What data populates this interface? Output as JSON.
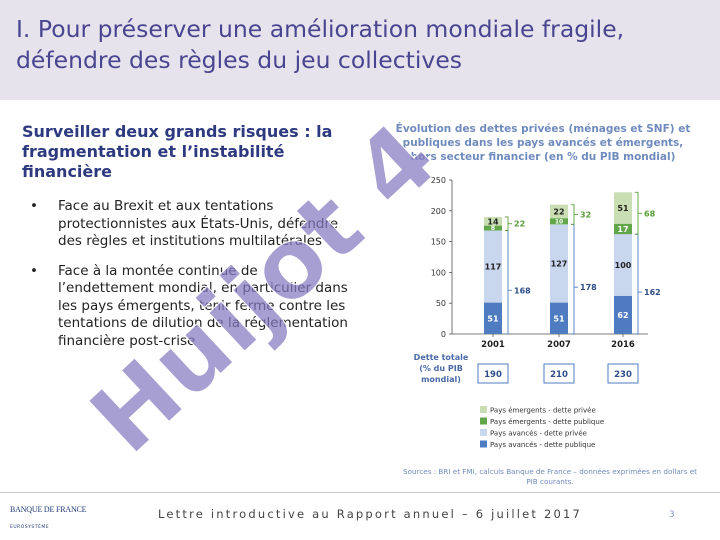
{
  "title": "I. Pour préserver une amélioration mondiale fragile, défendre des règles du jeu collectives",
  "subtitle": "Surveiller deux grands risques : la fragmentation et l’instabilité financière",
  "bullets": [
    "Face au Brexit et aux tentations protectionnistes aux États-Unis, défendre des règles et institutions multilatérales",
    "Face à la montée continue de l’endettement mondial, en particulier dans les pays émergents, tenir ferme contre les tentations de dilution de la réglementation financière post-crise"
  ],
  "bullet_glyph": "•",
  "watermark": "Huijot 4",
  "chart_title": "Évolution des dettes privées (ménages et SNF) et publiques dans les pays avancés et émergents, hors secteur financier (en % du PIB mondial)",
  "chart_data": {
    "type": "bar",
    "stacked": true,
    "categories": [
      "2001",
      "2007",
      "2016"
    ],
    "ylim": [
      0,
      250
    ],
    "yticks": [
      "0",
      "50",
      "100",
      "150",
      "200",
      "250"
    ],
    "series": [
      {
        "name": "Pays avancés - dette publique",
        "values": [
          51,
          51,
          62
        ],
        "color": "#4f7cc0",
        "labels": [
          "51",
          "51",
          "62"
        ]
      },
      {
        "name": "Pays avancés - dette privée",
        "values": [
          117,
          127,
          100
        ],
        "color": "#c8d6ee",
        "labels": [
          "117",
          "127",
          "100"
        ]
      },
      {
        "name": "Pays émergents - dette publique",
        "values": [
          8,
          10,
          17
        ],
        "color": "#62a64a",
        "labels": [
          "8",
          "10",
          "17"
        ]
      },
      {
        "name": "Pays émergents - dette privée",
        "values": [
          14,
          22,
          51
        ],
        "color": "#c9deb3",
        "labels": [
          "14",
          "22",
          "51"
        ]
      }
    ],
    "advanced_totals": [
      "168",
      "178",
      "162"
    ],
    "emerging_totals": [
      "22",
      "32",
      "68"
    ],
    "total_label": "Dette totale (% du PIB mondial)",
    "totals": [
      "190",
      "210",
      "230"
    ],
    "legend_order": [
      3,
      2,
      1,
      0
    ],
    "grid": false
  },
  "sources": "Sources : BRI et FMI, calculs Banque de France – données exprimées en dollars et PIB courants.",
  "logo": {
    "line1": "BANQUE DE FRANCE",
    "line2": "EUROSYSTÈME"
  },
  "footer": "Lettre introductive au Rapport annuel – 6 juillet 2017",
  "page_number": "3",
  "colors": {
    "title": "#4a4590",
    "header_bg": "#e7e3ed",
    "watermark": "#8579c0",
    "accent_green": "#5a9e3a",
    "accent_blue": "#4f7cc0"
  }
}
